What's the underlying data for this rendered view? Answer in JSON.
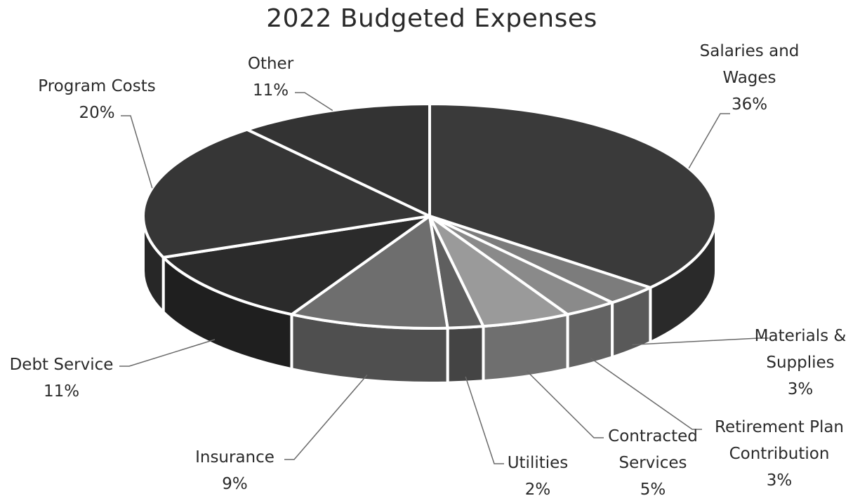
{
  "chart_data": {
    "type": "pie",
    "title": "2022 Budgeted Expenses",
    "style": "3d",
    "slices": [
      {
        "label": "Salaries and Wages",
        "value": 36,
        "display": "36%",
        "color": "#3a3a3a"
      },
      {
        "label": "Materials & Supplies",
        "value": 3,
        "display": "3%",
        "color": "#7c7c7c"
      },
      {
        "label": "Retirement Plan Contribution",
        "value": 3,
        "display": "3%",
        "color": "#8a8a8a"
      },
      {
        "label": "Contracted Services",
        "value": 5,
        "display": "5%",
        "color": "#9a9a9a"
      },
      {
        "label": "Utilities",
        "value": 2,
        "display": "2%",
        "color": "#5f5f5f"
      },
      {
        "label": "Insurance",
        "value": 9,
        "display": "9%",
        "color": "#6e6e6e"
      },
      {
        "label": "Debt Service",
        "value": 11,
        "display": "11%",
        "color": "#2b2b2b"
      },
      {
        "label": "Program Costs",
        "value": 20,
        "display": "20%",
        "color": "#363636"
      },
      {
        "label": "Other",
        "value": 11,
        "display": "11%",
        "color": "#333333"
      }
    ]
  },
  "labels": {
    "salaries": {
      "line1": "Salaries and",
      "line2": "Wages",
      "pct": "36%"
    },
    "materials": {
      "line1": "Materials &",
      "line2": "Supplies",
      "pct": "3%"
    },
    "retirement": {
      "line1": "Retirement Plan",
      "line2": "Contribution",
      "pct": "3%"
    },
    "contracted": {
      "line1": "Contracted",
      "line2": "Services",
      "pct": "5%"
    },
    "utilities": {
      "line1": "Utilities",
      "pct": "2%"
    },
    "insurance": {
      "line1": "Insurance",
      "pct": "9%"
    },
    "debt": {
      "line1": "Debt Service",
      "pct": "11%"
    },
    "program": {
      "line1": "Program Costs",
      "pct": "20%"
    },
    "other": {
      "line1": "Other",
      "pct": "11%"
    }
  }
}
